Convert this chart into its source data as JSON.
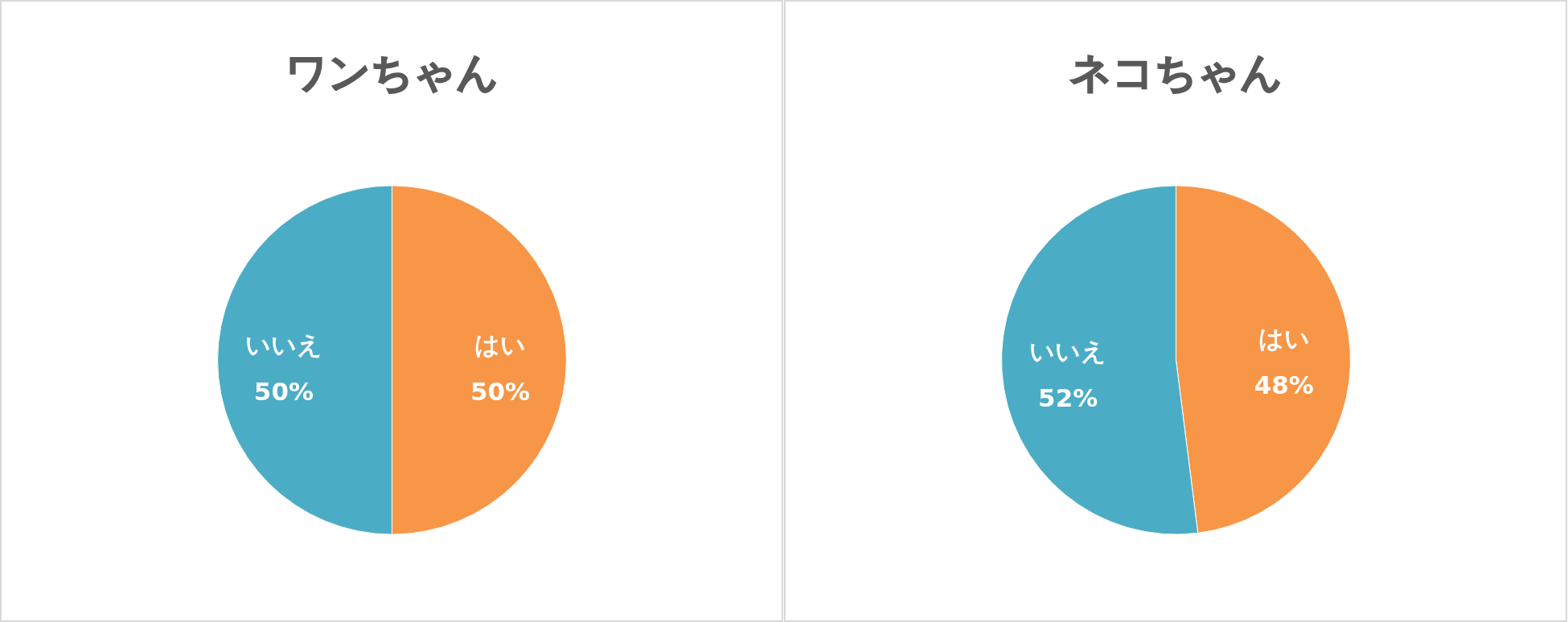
{
  "chart_data": [
    {
      "type": "pie",
      "title": "ワンちゃん",
      "categories": [
        "はい",
        "いいえ"
      ],
      "values": [
        50,
        50
      ],
      "colors": [
        "#f79646",
        "#4bacc6"
      ],
      "value_labels": [
        "50%",
        "50%"
      ]
    },
    {
      "type": "pie",
      "title": "ネコちゃん",
      "categories": [
        "はい",
        "いいえ"
      ],
      "values": [
        48,
        52
      ],
      "colors": [
        "#f79646",
        "#4bacc6"
      ],
      "value_labels": [
        "48%",
        "52%"
      ]
    }
  ]
}
